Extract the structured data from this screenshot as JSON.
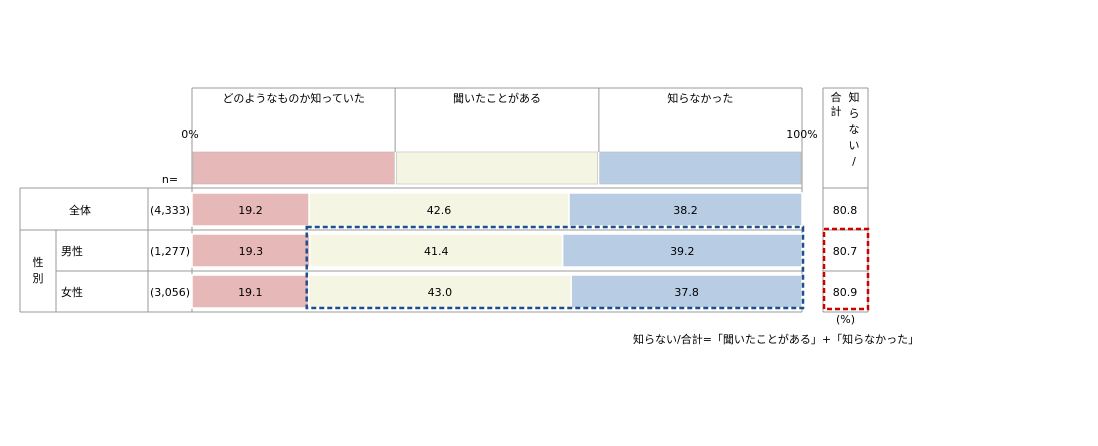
{
  "chart_data": {
    "type": "bar",
    "stacked": true,
    "orientation": "horizontal",
    "legend": [
      "どのようなものか知っていた",
      "聞いたことがある",
      "知らなかった"
    ],
    "axis": {
      "min_label": "0%",
      "max_label": "100%",
      "n_label": "n="
    },
    "groups": [
      {
        "label": "",
        "rows": [
          {
            "label": "全体",
            "n": "(4,333)",
            "values": [
              19.2,
              42.6,
              38.2
            ],
            "total": "80.8"
          }
        ]
      },
      {
        "label": "性別",
        "rows": [
          {
            "label": "男性",
            "n": "(1,277)",
            "values": [
              19.3,
              41.4,
              39.2
            ],
            "total": "80.7"
          },
          {
            "label": "女性",
            "n": "(3,056)",
            "values": [
              19.1,
              43.0,
              37.8
            ],
            "total": "80.9"
          }
        ]
      }
    ],
    "total_header": [
      "合",
      "計"
    ],
    "total_header_sub": [
      "知",
      "ら",
      "な",
      "い",
      "/"
    ],
    "unit": "(%)",
    "footnote": "知らない/合計=「聞いたことがある」+「知らなかった」",
    "colors": {
      "known": "#e6b8b7",
      "heard": "#f5f5e4",
      "unknown": "#b8cce4",
      "highlight_blue": "#1f4e8c",
      "highlight_red": "#cc0000"
    }
  }
}
